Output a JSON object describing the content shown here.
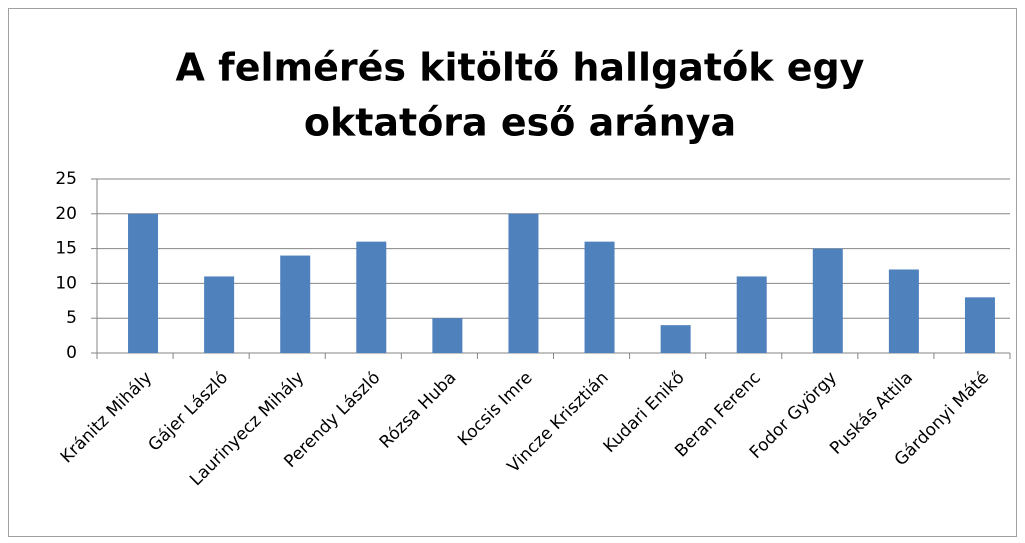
{
  "chart_data": {
    "type": "bar",
    "title": [
      "A felmérés kitöltő hallgatók egy",
      "oktatóra eső aránya"
    ],
    "categories": [
      "Kránitz Mihály",
      "Gájer László",
      "Laurinyecz Mihály",
      "Perendy László",
      "Rózsa Huba",
      "Kocsis Imre",
      "Vincze Krisztián",
      "Kudari Enikő",
      "Beran Ferenc",
      "Fodor György",
      "Puskás Attila",
      "Gárdonyi Máté"
    ],
    "values": [
      20,
      11,
      14,
      16,
      5,
      20,
      16,
      4,
      11,
      15,
      12,
      8
    ],
    "color": "#4f81bd",
    "ylim": [
      0,
      25
    ],
    "yticks": [
      0,
      5,
      10,
      15,
      20,
      25
    ],
    "grid": true
  }
}
